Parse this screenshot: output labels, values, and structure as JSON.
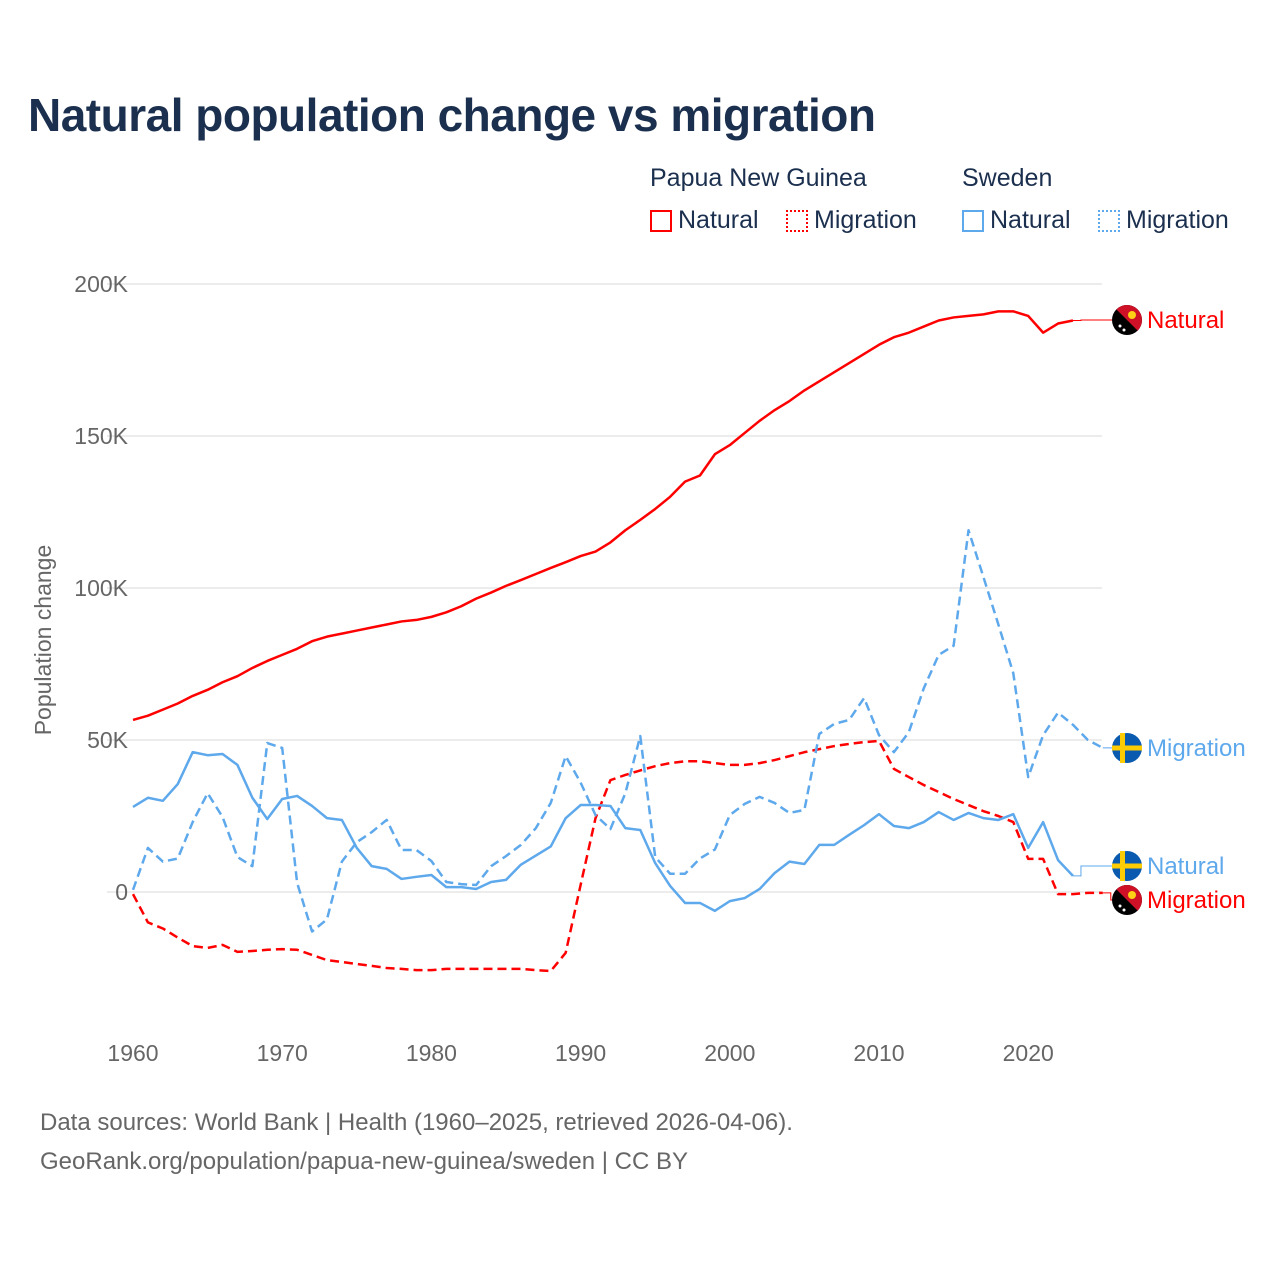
{
  "title": "Natural population change vs migration",
  "legend": {
    "groups": [
      {
        "name": "Papua New Guinea",
        "items": [
          "Natural",
          "Migration"
        ]
      },
      {
        "name": "Sweden",
        "items": [
          "Natural",
          "Migration"
        ]
      }
    ]
  },
  "colors": {
    "png": "#ff0000",
    "sweden": "#5ea8ec",
    "grid": "#e6e6e6",
    "text": "#1b2f4e"
  },
  "source_lines": [
    "Data sources: World Bank | Health (1960–2025, retrieved 2026-04-06).",
    "GeoRank.org/population/papua-new-guinea/sweden | CC BY"
  ],
  "chart_data": {
    "type": "line",
    "title": "Natural population change vs migration",
    "xlabel": "",
    "ylabel": "Population change",
    "xlim": [
      1960,
      2025
    ],
    "ylim": [
      -40000,
      200000
    ],
    "x_ticks": [
      1960,
      1970,
      1980,
      1990,
      2000,
      2010,
      2020
    ],
    "x_tick_labels": [
      "1960",
      "1970",
      "1980",
      "1990",
      "2000",
      "2010",
      "2020"
    ],
    "y_ticks": [
      0,
      50000,
      100000,
      150000,
      200000
    ],
    "y_tick_labels": [
      "0",
      "50K",
      "100K",
      "150K",
      "200K"
    ],
    "grid": true,
    "legend_position": "top-right",
    "series": [
      {
        "name": "Natural",
        "country": "Papua New Guinea",
        "color": "#ff0000",
        "dash": false,
        "end_label": "Natural",
        "flag": "png",
        "start": 1960,
        "values": [
          56600,
          58000,
          60000,
          62000,
          64500,
          66500,
          69000,
          71000,
          73700,
          76000,
          78000,
          80000,
          82500,
          84000,
          85000,
          86000,
          87000,
          88000,
          89000,
          89500,
          90500,
          92000,
          94000,
          96500,
          98500,
          100700,
          102600,
          104600,
          106600,
          108500,
          110500,
          112000,
          115000,
          119000,
          122400,
          126000,
          130000,
          135000,
          137000,
          144000,
          147000,
          151000,
          155000,
          158500,
          161500,
          165000,
          168000,
          171000,
          174000,
          177000,
          180000,
          182500,
          184000,
          186000,
          188000,
          189000,
          189500,
          190000,
          191000,
          191000,
          189500,
          184000,
          187000,
          188000
        ]
      },
      {
        "name": "Migration",
        "country": "Papua New Guinea",
        "color": "#ff0000",
        "dash": true,
        "end_label": "Migration",
        "flag": "png",
        "start": 1960,
        "values": [
          -700,
          -10000,
          -12000,
          -15000,
          -17800,
          -18400,
          -17400,
          -19700,
          -19400,
          -19000,
          -18800,
          -19000,
          -20700,
          -22400,
          -23000,
          -23700,
          -24300,
          -25000,
          -25300,
          -25700,
          -25700,
          -25300,
          -25300,
          -25300,
          -25300,
          -25300,
          -25300,
          -25700,
          -26000,
          -20000,
          2300,
          24300,
          36800,
          38500,
          40000,
          41400,
          42400,
          43000,
          43000,
          42400,
          41800,
          41800,
          42400,
          43400,
          44700,
          46000,
          47000,
          48000,
          48700,
          49300,
          49700,
          40500,
          37800,
          35200,
          32900,
          30600,
          28600,
          26600,
          25000,
          23000,
          10900,
          10900,
          -700,
          -700,
          -300,
          -300
        ]
      },
      {
        "name": "Natural",
        "country": "Sweden",
        "color": "#5ea8ec",
        "dash": false,
        "end_label": "Natural",
        "flag": "sweden",
        "start": 1960,
        "values": [
          28000,
          31000,
          30000,
          35500,
          46000,
          45000,
          45400,
          41800,
          31000,
          24000,
          30600,
          31600,
          28300,
          24300,
          23700,
          14500,
          8500,
          7600,
          4300,
          5000,
          5600,
          1600,
          1600,
          1000,
          3300,
          4000,
          9000,
          12000,
          15000,
          24300,
          28600,
          28600,
          28300,
          21000,
          20400,
          9500,
          2000,
          -3600,
          -3600,
          -6200,
          -3000,
          -2000,
          1000,
          6200,
          10000,
          9200,
          15500,
          15500,
          18800,
          22000,
          25600,
          21700,
          21000,
          23000,
          26300,
          23700,
          26000,
          24300,
          23700,
          25600,
          14500,
          23000,
          10500,
          5300
        ]
      },
      {
        "name": "Migration",
        "country": "Sweden",
        "color": "#5ea8ec",
        "dash": true,
        "end_label": "Migration",
        "flag": "sweden",
        "start": 1960,
        "values": [
          700,
          14500,
          10000,
          11000,
          23000,
          32500,
          24700,
          11500,
          8500,
          49000,
          47400,
          3000,
          -13000,
          -9000,
          10000,
          16400,
          19700,
          23700,
          13800,
          13800,
          10200,
          3300,
          2600,
          2300,
          8500,
          11800,
          15500,
          21000,
          29300,
          44700,
          36000,
          25300,
          20700,
          32500,
          51300,
          11500,
          6000,
          6000,
          11000,
          14000,
          25300,
          29000,
          31300,
          29300,
          26000,
          27000,
          52000,
          55300,
          56600,
          63800,
          51600,
          46000,
          52600,
          67000,
          78000,
          81000,
          119000,
          103600,
          88000,
          72000,
          37800,
          51600,
          59000,
          55000,
          50000,
          47400
        ]
      }
    ]
  }
}
